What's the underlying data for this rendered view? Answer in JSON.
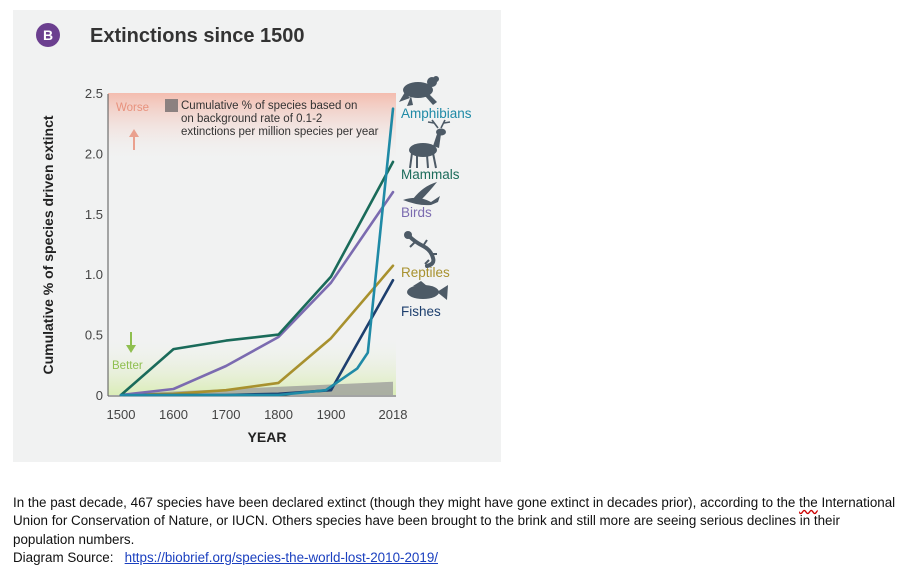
{
  "figure": {
    "badge": "B",
    "title": "Extinctions since 1500",
    "legend_text": [
      "Cumulative % of species based on",
      "on background rate of 0.1-2",
      "extinctions per million species per year"
    ],
    "worse_label": "Worse",
    "better_label": "Better",
    "icons": [
      "frog-icon",
      "deer-icon",
      "bird-icon",
      "lizard-icon",
      "fish-icon"
    ]
  },
  "chart_data": {
    "type": "line",
    "title": "Extinctions since 1500",
    "xlabel": "YEAR",
    "ylabel": "Cumulative % of species driven extinct",
    "x": [
      1500,
      1600,
      1700,
      1800,
      1900,
      2018
    ],
    "xticks": [
      1500,
      1600,
      1700,
      1800,
      1900,
      2018
    ],
    "xtick_labels": [
      "1500",
      "1600",
      "1700",
      "1800",
      "1900",
      "2018"
    ],
    "yticks": [
      0,
      0.5,
      1.0,
      1.5,
      2.0,
      2.5
    ],
    "ytick_labels": [
      "0",
      "0.5",
      "1.0",
      "1.5",
      "2.0",
      "2.5"
    ],
    "xlim": [
      1500,
      2018
    ],
    "ylim": [
      0,
      2.5
    ],
    "grid": false,
    "series": [
      {
        "name": "Amphibians",
        "color": "#1f8aa6",
        "points": [
          [
            1500,
            0
          ],
          [
            1600,
            0
          ],
          [
            1700,
            0
          ],
          [
            1800,
            0
          ],
          [
            1890,
            0.04
          ],
          [
            1950,
            0.22
          ],
          [
            1970,
            0.35
          ],
          [
            2018,
            2.37
          ]
        ]
      },
      {
        "name": "Mammals",
        "color": "#1a6b5a",
        "points": [
          [
            1500,
            0
          ],
          [
            1600,
            0.38
          ],
          [
            1700,
            0.45
          ],
          [
            1800,
            0.5
          ],
          [
            1900,
            0.98
          ],
          [
            2018,
            1.93
          ]
        ]
      },
      {
        "name": "Birds",
        "color": "#7b6bb0",
        "points": [
          [
            1500,
            0
          ],
          [
            1600,
            0.05
          ],
          [
            1700,
            0.24
          ],
          [
            1800,
            0.48
          ],
          [
            1900,
            0.93
          ],
          [
            2018,
            1.68
          ]
        ]
      },
      {
        "name": "Reptiles",
        "color": "#a8912e",
        "points": [
          [
            1500,
            0
          ],
          [
            1600,
            0.01
          ],
          [
            1700,
            0.04
          ],
          [
            1800,
            0.1
          ],
          [
            1900,
            0.47
          ],
          [
            2018,
            1.07
          ]
        ]
      },
      {
        "name": "Fishes",
        "color": "#1d3f6e",
        "points": [
          [
            1500,
            0
          ],
          [
            1600,
            0
          ],
          [
            1700,
            0
          ],
          [
            1800,
            0.01
          ],
          [
            1900,
            0.04
          ],
          [
            2018,
            0.95
          ]
        ]
      }
    ],
    "background_rate_band": {
      "label": "Cumulative % of species based on background rate of 0.1-2 extinctions per million species per year",
      "upper": [
        [
          1500,
          0.01
        ],
        [
          2018,
          0.11
        ]
      ]
    }
  },
  "caption": {
    "text": "In the past decade, 467 species have been declared extinct (though they might have gone extinct in decades prior), according to the ",
    "typo_word": "the",
    "text_rest": " International Union for Conservation of Nature, or IUCN. Others species have been brought to the brink and still more are seeing serious declines in their population numbers.",
    "source_label": "Diagram Source:   ",
    "source_url": "https://biobrief.org/species-the-world-lost-2010-2019/"
  }
}
